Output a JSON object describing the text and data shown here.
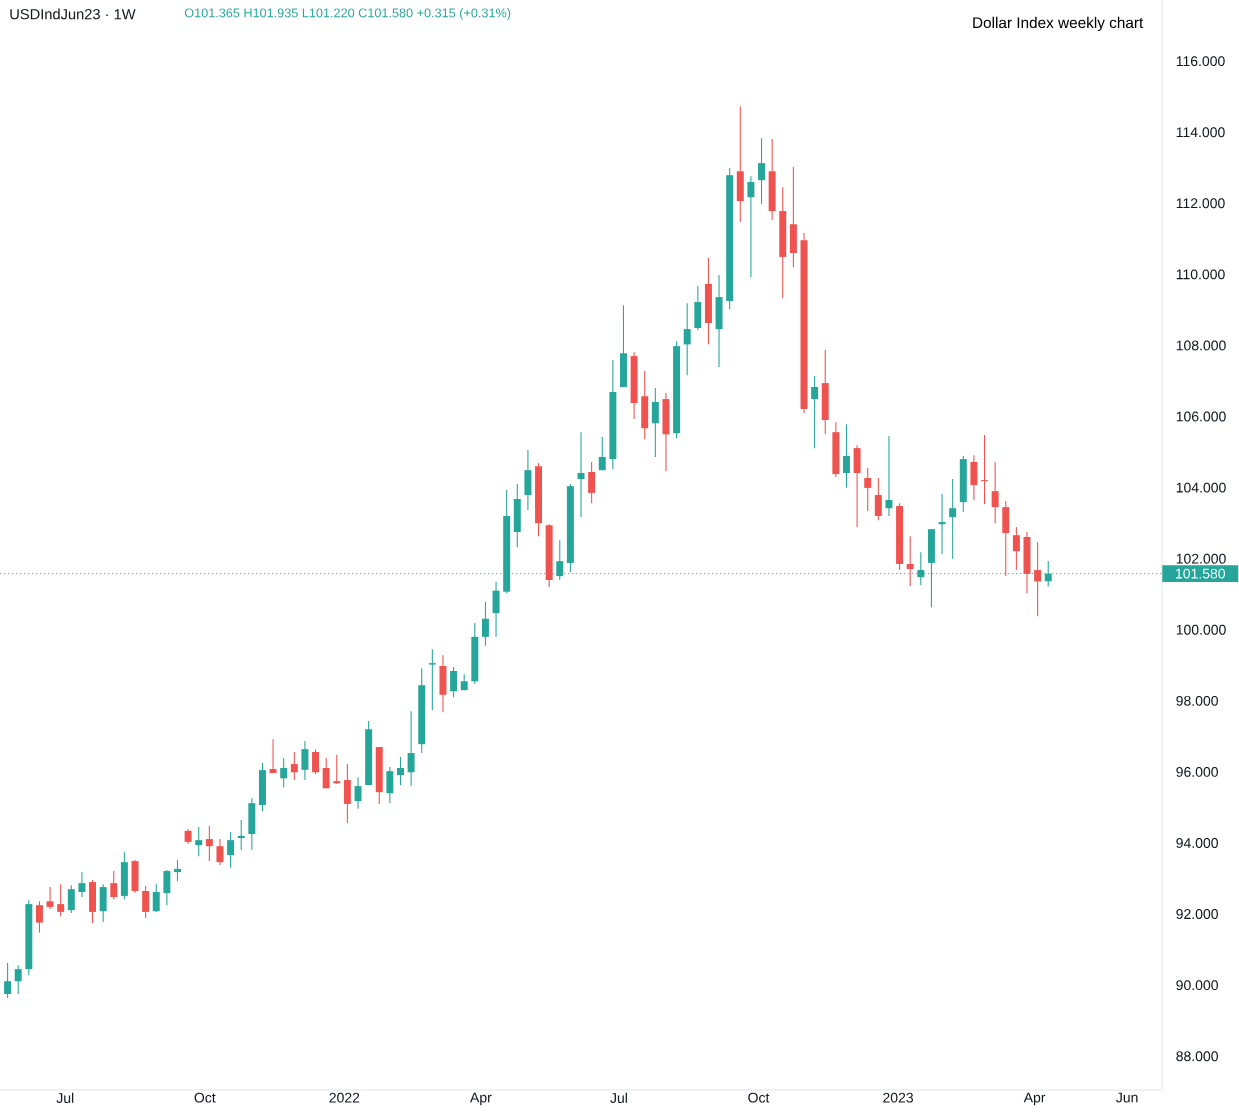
{
  "chart_data": {
    "type": "candlestick",
    "title": "Dollar Index weekly chart",
    "subtitle": "USDIndJun23 · 1W",
    "annotations": [
      "O101.365 H101.935 L101.220 C101.580 +0.315 (+0.31%)"
    ],
    "x": [
      "2021-05-24",
      "2021-05-31",
      "2021-06-07",
      "2021-06-14",
      "2021-06-21",
      "2021-06-28",
      "2021-07-05",
      "2021-07-12",
      "2021-07-19",
      "2021-07-26",
      "2021-08-02",
      "2021-08-09",
      "2021-08-16",
      "2021-08-23",
      "2021-08-30",
      "2021-09-06",
      "2021-09-13",
      "2021-09-20",
      "2021-09-27",
      "2021-10-04",
      "2021-10-11",
      "2021-10-18",
      "2021-10-25",
      "2021-11-01",
      "2021-11-08",
      "2021-11-15",
      "2021-11-22",
      "2021-11-29",
      "2021-12-06",
      "2021-12-13",
      "2021-12-20",
      "2021-12-27",
      "2022-01-03",
      "2022-01-10",
      "2022-01-17",
      "2022-01-24",
      "2022-01-31",
      "2022-02-07",
      "2022-02-14",
      "2022-02-21",
      "2022-02-28",
      "2022-03-07",
      "2022-03-14",
      "2022-03-21",
      "2022-03-28",
      "2022-04-04",
      "2022-04-11",
      "2022-04-18",
      "2022-04-25",
      "2022-05-02",
      "2022-05-09",
      "2022-05-16",
      "2022-05-23",
      "2022-05-30",
      "2022-06-06",
      "2022-06-13",
      "2022-06-20",
      "2022-06-27",
      "2022-07-04",
      "2022-07-11",
      "2022-07-18",
      "2022-07-25",
      "2022-08-01",
      "2022-08-08",
      "2022-08-15",
      "2022-08-22",
      "2022-08-29",
      "2022-09-05",
      "2022-09-12",
      "2022-09-19",
      "2022-09-26",
      "2022-10-03",
      "2022-10-10",
      "2022-10-17",
      "2022-10-24",
      "2022-10-31",
      "2022-11-07",
      "2022-11-14",
      "2022-11-21",
      "2022-11-28",
      "2022-12-05",
      "2022-12-12",
      "2022-12-19",
      "2022-12-26",
      "2023-01-02",
      "2023-01-09",
      "2023-01-16",
      "2023-01-23",
      "2023-01-30",
      "2023-02-06",
      "2023-02-13",
      "2023-02-20",
      "2023-02-27",
      "2023-03-06",
      "2023-03-13",
      "2023-03-20",
      "2023-03-27",
      "2023-04-03",
      "2023-04-10"
    ],
    "ohlc": [
      [
        89.75,
        90.62,
        89.64,
        90.11
      ],
      [
        90.11,
        90.56,
        89.75,
        90.45
      ],
      [
        90.45,
        92.39,
        90.28,
        92.28
      ],
      [
        92.25,
        92.36,
        91.48,
        91.76
      ],
      [
        92.36,
        92.76,
        92.14,
        92.2
      ],
      [
        92.28,
        92.84,
        91.94,
        92.06
      ],
      [
        92.11,
        92.81,
        92.03,
        92.7
      ],
      [
        92.62,
        93.18,
        92.48,
        92.87
      ],
      [
        92.9,
        92.96,
        91.75,
        92.06
      ],
      [
        92.08,
        92.84,
        91.78,
        92.76
      ],
      [
        92.87,
        93.21,
        92.42,
        92.48
      ],
      [
        92.51,
        93.74,
        92.42,
        93.46
      ],
      [
        93.49,
        93.52,
        92.59,
        92.65
      ],
      [
        92.65,
        92.79,
        91.89,
        92.06
      ],
      [
        92.08,
        92.84,
        92.06,
        92.62
      ],
      [
        92.59,
        93.24,
        92.25,
        93.21
      ],
      [
        93.18,
        93.52,
        92.93,
        93.27
      ],
      [
        94.34,
        94.39,
        93.97,
        94.03
      ],
      [
        93.94,
        94.45,
        93.63,
        94.08
      ],
      [
        94.11,
        94.48,
        93.49,
        93.91
      ],
      [
        93.91,
        94.11,
        93.38,
        93.46
      ],
      [
        93.66,
        94.31,
        93.3,
        94.08
      ],
      [
        94.14,
        94.65,
        93.8,
        94.2
      ],
      [
        94.25,
        95.26,
        93.8,
        95.12
      ],
      [
        95.07,
        96.25,
        94.9,
        96.05
      ],
      [
        96.08,
        96.92,
        95.97,
        95.97
      ],
      [
        95.82,
        96.39,
        95.57,
        96.11
      ],
      [
        96.22,
        96.56,
        95.77,
        95.99
      ],
      [
        96.06,
        96.87,
        95.77,
        96.64
      ],
      [
        96.56,
        96.64,
        95.94,
        95.99
      ],
      [
        96.11,
        96.39,
        95.54,
        95.54
      ],
      [
        95.74,
        96.48,
        95.66,
        95.68
      ],
      [
        95.77,
        96.22,
        94.56,
        95.1
      ],
      [
        95.18,
        95.85,
        94.96,
        95.6
      ],
      [
        95.63,
        97.43,
        95.63,
        97.2
      ],
      [
        96.7,
        96.7,
        95.1,
        95.43
      ],
      [
        95.4,
        96.14,
        95.12,
        96.02
      ],
      [
        95.91,
        96.42,
        95.63,
        96.11
      ],
      [
        95.99,
        97.71,
        95.6,
        96.53
      ],
      [
        96.78,
        98.92,
        96.53,
        98.44
      ],
      [
        99.02,
        99.45,
        97.74,
        99.06
      ],
      [
        98.98,
        99.28,
        97.68,
        98.17
      ],
      [
        98.27,
        98.95,
        98.1,
        98.84
      ],
      [
        98.3,
        98.75,
        98.3,
        98.55
      ],
      [
        98.55,
        100.19,
        98.47,
        99.8
      ],
      [
        99.8,
        100.78,
        99.55,
        100.31
      ],
      [
        100.47,
        101.35,
        99.8,
        101.1
      ],
      [
        101.07,
        103.93,
        101.03,
        103.2
      ],
      [
        102.75,
        104.1,
        102.32,
        103.68
      ],
      [
        103.79,
        105.06,
        103.37,
        104.49
      ],
      [
        104.6,
        104.69,
        102.63,
        103.0
      ],
      [
        102.94,
        102.97,
        101.2,
        101.4
      ],
      [
        101.51,
        102.52,
        101.4,
        101.93
      ],
      [
        101.88,
        104.1,
        101.62,
        104.04
      ],
      [
        104.24,
        105.56,
        103.17,
        104.41
      ],
      [
        104.44,
        104.72,
        103.56,
        103.85
      ],
      [
        104.49,
        105.42,
        104.49,
        104.86
      ],
      [
        104.8,
        107.59,
        104.52,
        106.69
      ],
      [
        106.83,
        109.13,
        106.83,
        107.78
      ],
      [
        107.7,
        107.81,
        105.93,
        106.38
      ],
      [
        106.57,
        107.28,
        105.36,
        105.67
      ],
      [
        105.81,
        106.8,
        104.86,
        106.41
      ],
      [
        106.49,
        106.66,
        104.46,
        105.5
      ],
      [
        105.53,
        108.12,
        105.39,
        107.98
      ],
      [
        108.03,
        109.19,
        107.16,
        108.46
      ],
      [
        108.49,
        109.67,
        108.43,
        109.22
      ],
      [
        109.73,
        110.46,
        108.03,
        108.63
      ],
      [
        108.46,
        109.98,
        107.39,
        109.36
      ],
      [
        109.25,
        112.99,
        109.02,
        112.79
      ],
      [
        112.9,
        114.73,
        111.47,
        112.06
      ],
      [
        112.17,
        112.76,
        109.92,
        112.6
      ],
      [
        112.65,
        113.83,
        111.98,
        113.13
      ],
      [
        112.9,
        113.81,
        111.53,
        111.78
      ],
      [
        111.78,
        112.45,
        109.33,
        110.49
      ],
      [
        111.41,
        113.02,
        110.2,
        110.6
      ],
      [
        110.96,
        111.16,
        106.1,
        106.21
      ],
      [
        106.49,
        107.14,
        105.11,
        106.83
      ],
      [
        106.94,
        107.87,
        105.5,
        105.9
      ],
      [
        105.56,
        105.84,
        104.3,
        104.38
      ],
      [
        104.41,
        105.78,
        104.0,
        104.89
      ],
      [
        105.11,
        105.19,
        102.89,
        104.41
      ],
      [
        104.27,
        104.55,
        103.34,
        103.99
      ],
      [
        103.79,
        104.27,
        103.08,
        103.2
      ],
      [
        103.42,
        105.45,
        103.2,
        103.65
      ],
      [
        103.48,
        103.56,
        101.68,
        101.85
      ],
      [
        101.85,
        102.63,
        101.23,
        101.71
      ],
      [
        101.48,
        102.18,
        101.26,
        101.68
      ],
      [
        101.88,
        102.83,
        100.63,
        102.83
      ],
      [
        102.97,
        103.82,
        102.13,
        103.03
      ],
      [
        103.17,
        104.24,
        102.0,
        103.42
      ],
      [
        103.59,
        104.89,
        103.31,
        104.8
      ],
      [
        104.72,
        104.91,
        103.65,
        104.07
      ],
      [
        104.21,
        105.48,
        103.54,
        104.18
      ],
      [
        103.9,
        104.72,
        103.0,
        103.45
      ],
      [
        103.45,
        103.62,
        101.51,
        102.72
      ],
      [
        102.66,
        102.89,
        101.68,
        102.21
      ],
      [
        102.61,
        102.75,
        101.03,
        101.57
      ],
      [
        101.68,
        102.46,
        100.38,
        101.36
      ],
      [
        101.365,
        101.935,
        101.22,
        101.58
      ]
    ],
    "colors": [
      "#26a69a",
      "#26a69a",
      "#26a69a",
      "#ef5350",
      "#ef5350",
      "#ef5350",
      "#26a69a",
      "#26a69a",
      "#ef5350",
      "#26a69a",
      "#ef5350",
      "#26a69a",
      "#ef5350",
      "#ef5350",
      "#26a69a",
      "#26a69a",
      "#26a69a",
      "#ef5350",
      "#26a69a",
      "#ef5350",
      "#ef5350",
      "#26a69a",
      "#26a69a",
      "#26a69a",
      "#26a69a",
      "#ef5350",
      "#26a69a",
      "#ef5350",
      "#26a69a",
      "#ef5350",
      "#ef5350",
      "#ef5350",
      "#ef5350",
      "#26a69a",
      "#26a69a",
      "#ef5350",
      "#26a69a",
      "#26a69a",
      "#26a69a",
      "#26a69a",
      "#26a69a",
      "#ef5350",
      "#26a69a",
      "#26a69a",
      "#26a69a",
      "#26a69a",
      "#26a69a",
      "#26a69a",
      "#26a69a",
      "#26a69a",
      "#ef5350",
      "#ef5350",
      "#26a69a",
      "#26a69a",
      "#26a69a",
      "#ef5350",
      "#26a69a",
      "#26a69a",
      "#26a69a",
      "#ef5350",
      "#ef5350",
      "#26a69a",
      "#ef5350",
      "#26a69a",
      "#26a69a",
      "#26a69a",
      "#ef5350",
      "#26a69a",
      "#26a69a",
      "#ef5350",
      "#26a69a",
      "#26a69a",
      "#ef5350",
      "#ef5350",
      "#ef5350",
      "#ef5350",
      "#26a69a",
      "#ef5350",
      "#ef5350",
      "#26a69a",
      "#ef5350",
      "#ef5350",
      "#ef5350",
      "#26a69a",
      "#ef5350",
      "#ef5350",
      "#26a69a",
      "#26a69a",
      "#26a69a",
      "#26a69a",
      "#26a69a",
      "#ef5350",
      "#ef5350",
      "#ef5350",
      "#ef5350",
      "#ef5350",
      "#ef5350",
      "#ef5350",
      "#26a69a"
    ],
    "xlim": [
      "2021-05-19",
      "2023-06-24"
    ],
    "ylim": [
      87.05,
      117.72
    ],
    "xticks": [
      {
        "value": "2021-07-01",
        "label": "Jul"
      },
      {
        "value": "2021-10-01",
        "label": "Oct"
      },
      {
        "value": "2022-01-01",
        "label": "2022"
      },
      {
        "value": "2022-04-01",
        "label": "Apr"
      },
      {
        "value": "2022-07-01",
        "label": "Jul"
      },
      {
        "value": "2022-10-01",
        "label": "Oct"
      },
      {
        "value": "2023-01-01",
        "label": "2023"
      },
      {
        "value": "2023-04-01",
        "label": "Apr"
      },
      {
        "value": "2023-06-01",
        "label": "Jun"
      }
    ],
    "yticks": [
      {
        "value": 88,
        "label": "88.000"
      },
      {
        "value": 90,
        "label": "90.000"
      },
      {
        "value": 92,
        "label": "92.000"
      },
      {
        "value": 94,
        "label": "94.000"
      },
      {
        "value": 96,
        "label": "96.000"
      },
      {
        "value": 98,
        "label": "98.000"
      },
      {
        "value": 100,
        "label": "100.000"
      },
      {
        "value": 102,
        "label": "102.000"
      },
      {
        "value": 104,
        "label": "104.000"
      },
      {
        "value": 106,
        "label": "106.000"
      },
      {
        "value": 108,
        "label": "108.000"
      },
      {
        "value": 110,
        "label": "110.000"
      },
      {
        "value": 112,
        "label": "112.000"
      },
      {
        "value": 114,
        "label": "114.000"
      },
      {
        "value": 116,
        "label": "116.000"
      }
    ],
    "ref_lines": [
      {
        "axis": "y",
        "value": 101.58,
        "label": "101.580",
        "color": "#26a69a",
        "line_style": "dotted"
      }
    ]
  }
}
